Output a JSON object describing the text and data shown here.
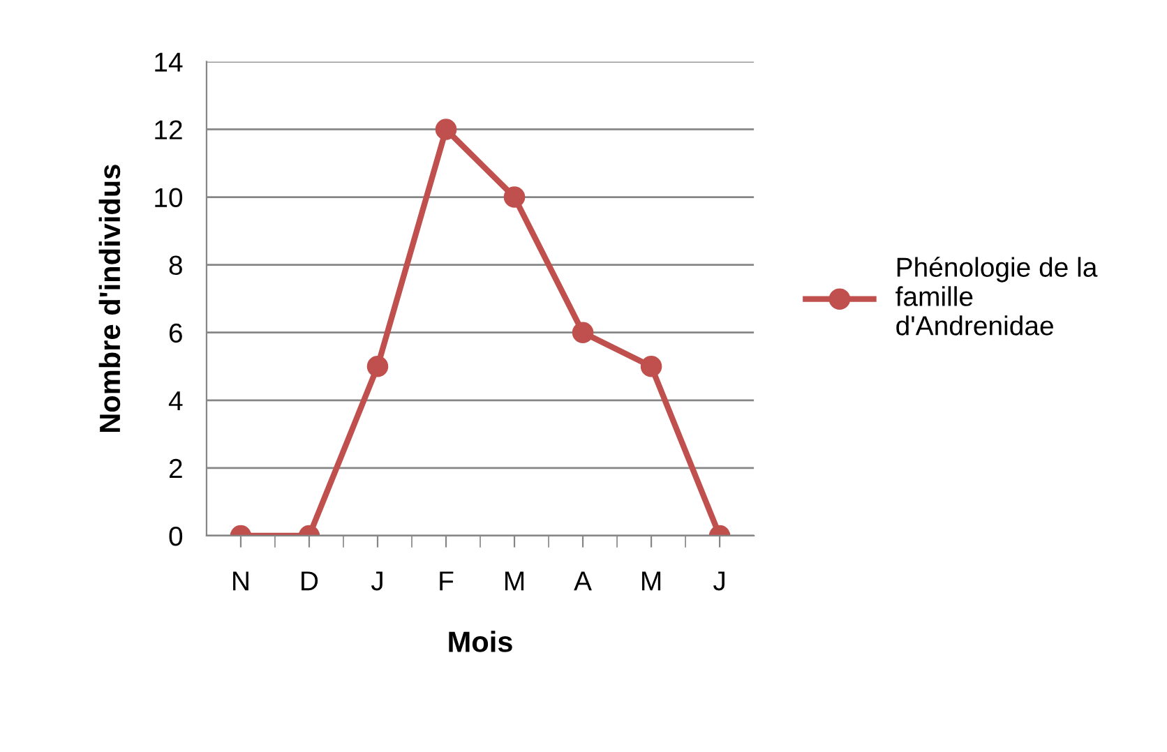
{
  "chart_data": {
    "type": "line",
    "xlabel": "Mois",
    "ylabel": "Nombre d'individus",
    "categories": [
      "N",
      "D",
      "J",
      "F",
      "M",
      "A",
      "M",
      "J"
    ],
    "series": [
      {
        "name": "Phénologie de la\nfamille\nd'Andrenidae",
        "color": "#c0504d",
        "values": [
          0,
          0,
          5,
          12,
          10,
          6,
          5,
          0
        ]
      }
    ],
    "ylim": [
      0,
      14
    ],
    "yticks": [
      0,
      2,
      4,
      6,
      8,
      10,
      12,
      14
    ],
    "grid": "y",
    "legend": "right",
    "marker": "circle",
    "line_style": "solid"
  }
}
